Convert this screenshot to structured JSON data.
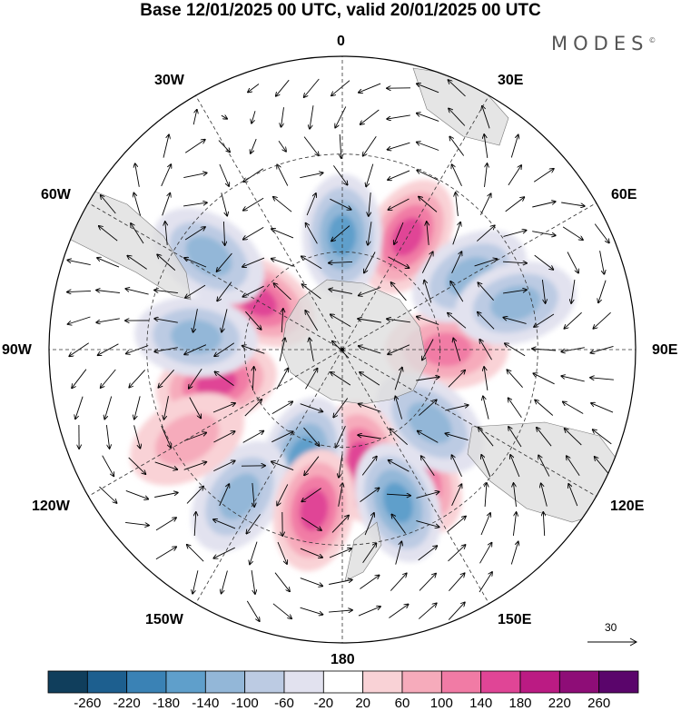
{
  "title": "Base 12/01/2025 00 UTC, valid 20/01/2025 00 UTC",
  "brand": {
    "name": "MODES",
    "mark": "©"
  },
  "longitude_labels": {
    "top": "0",
    "bottom": "180",
    "left": "90W",
    "right": "90E",
    "upper_left_30": "30W",
    "upper_left_60": "60W",
    "upper_right_30": "30E",
    "upper_right_60": "60E",
    "lower_left_120": "120W",
    "lower_left_150": "150W",
    "lower_right_120": "120E",
    "lower_right_150": "150E"
  },
  "reference_vector": {
    "value": "30",
    "icon": "arrow-right-icon"
  },
  "colorbar": {
    "ticks": [
      "-260",
      "-220",
      "-180",
      "-140",
      "-100",
      "-60",
      "-20",
      "20",
      "60",
      "100",
      "140",
      "180",
      "220",
      "260"
    ],
    "colors": [
      "#103e5c",
      "#1d5f8f",
      "#3a82b5",
      "#5f9fcb",
      "#93b7d8",
      "#bccbe3",
      "#e2e2ef",
      "#ffffff",
      "#f9d2d6",
      "#f6abbb",
      "#f17ba5",
      "#e04596",
      "#bb1b83",
      "#8e0d77",
      "#5a056b"
    ]
  },
  "chart_data": {
    "type": "heatmap",
    "projection": "south-polar-stereographic",
    "field": "anomaly",
    "color_range": [
      -260,
      260
    ],
    "vectors": true,
    "anomaly_centers": [
      {
        "lon": -60,
        "lat": -60,
        "sign": "positive",
        "value": 160
      },
      {
        "lon": 30,
        "lat": -50,
        "sign": "positive",
        "value": 160
      },
      {
        "lon": 0,
        "lat": -55,
        "sign": "negative",
        "value": -140
      },
      {
        "lon": -55,
        "lat": -40,
        "sign": "negative",
        "value": -100
      },
      {
        "lon": 90,
        "lat": -58,
        "sign": "positive",
        "value": 120
      },
      {
        "lon": 60,
        "lat": -45,
        "sign": "negative",
        "value": -100
      },
      {
        "lon": -105,
        "lat": -50,
        "sign": "positive",
        "value": 160
      },
      {
        "lon": -85,
        "lat": -45,
        "sign": "negative",
        "value": -100
      },
      {
        "lon": 150,
        "lat": -45,
        "sign": "positive",
        "value": 160
      },
      {
        "lon": 130,
        "lat": -55,
        "sign": "negative",
        "value": -100
      },
      {
        "lon": 170,
        "lat": -55,
        "sign": "positive",
        "value": 140
      },
      {
        "lon": -160,
        "lat": -55,
        "sign": "negative",
        "value": -140
      },
      {
        "lon": -145,
        "lat": -35,
        "sign": "negative",
        "value": -120
      },
      {
        "lon": -170,
        "lat": -40,
        "sign": "positive",
        "value": 140
      },
      {
        "lon": 160,
        "lat": -40,
        "sign": "negative",
        "value": -140
      },
      {
        "lon": -120,
        "lat": -35,
        "sign": "positive",
        "value": 60
      },
      {
        "lon": 75,
        "lat": -35,
        "sign": "negative",
        "value": -100
      }
    ]
  }
}
